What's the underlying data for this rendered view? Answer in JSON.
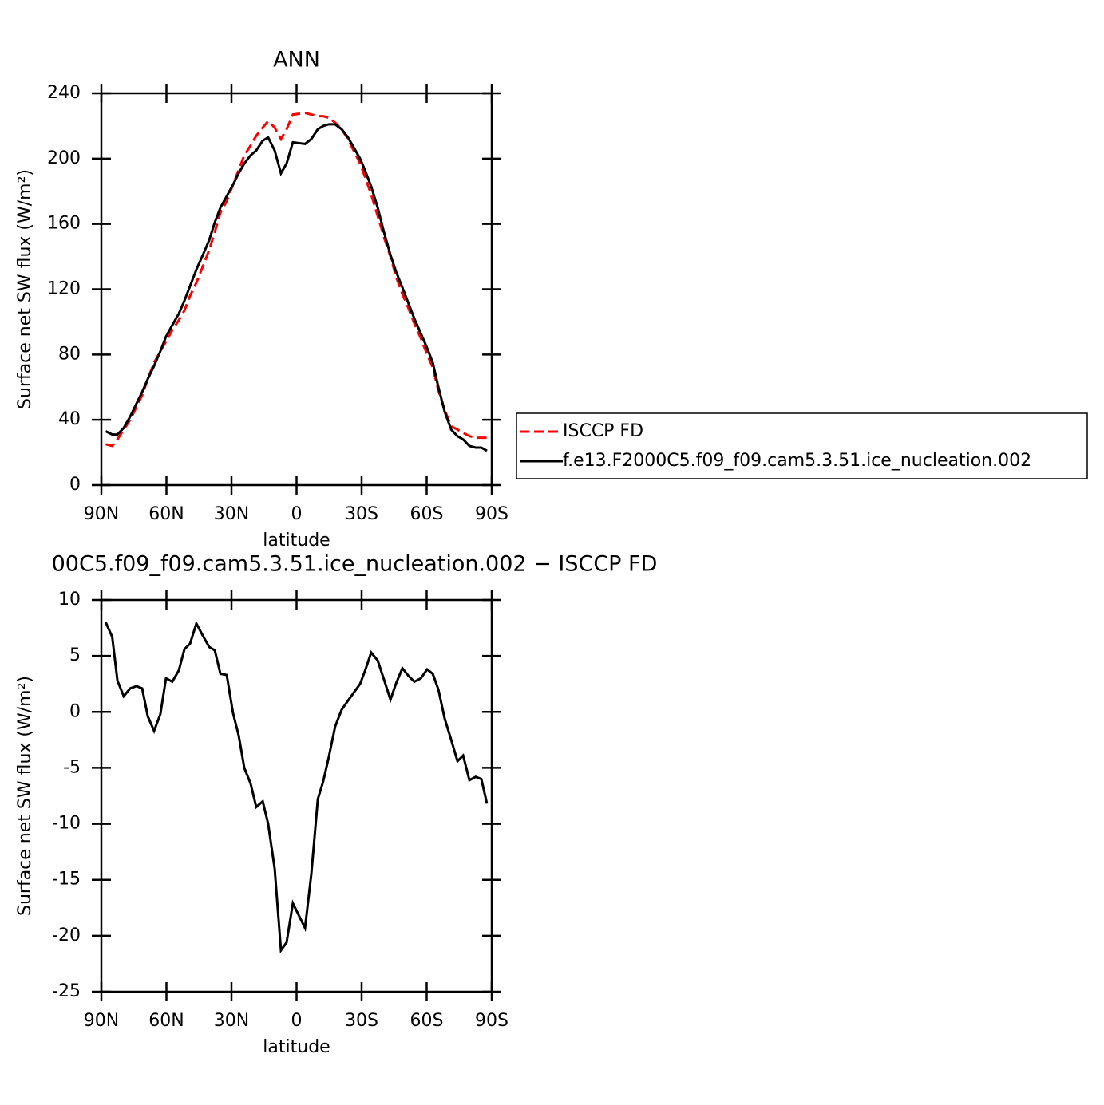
{
  "chart_data": [
    {
      "type": "line",
      "title": "ANN",
      "x_label": "latitude",
      "y_label": "Surface net SW flux (W/m²)",
      "x": [
        88,
        85,
        82.6,
        79.7,
        76.7,
        73.8,
        71.2,
        68.6,
        65.7,
        62.8,
        60.2,
        57.3,
        54.3,
        51.7,
        49.1,
        46.2,
        43.2,
        40.3,
        37.7,
        35.1,
        32.2,
        29.3,
        26.7,
        24.1,
        21.2,
        18.6,
        15.6,
        13.1,
        10.1,
        7.2,
        4.6,
        1.7,
        -3.9,
        -6.8,
        -9.8,
        -12.3,
        -14.9,
        -17.8,
        -20.8,
        -23.7,
        -26.3,
        -29.3,
        -31.8,
        -34.4,
        -37.4,
        -40.3,
        -43.3,
        -45.8,
        -48.8,
        -51.7,
        -54.3,
        -57.3,
        -60.2,
        -62.8,
        -65.4,
        -68.3,
        -71.3,
        -74.2,
        -76.8,
        -79.7,
        -82.6,
        -85.2,
        -87.8
      ],
      "series": [
        {
          "name": "ISCCP FD",
          "color": "#ff0000",
          "line_style": "dashed",
          "values": [
            25,
            24,
            28,
            34,
            40,
            48,
            55,
            65,
            75,
            82,
            88,
            95,
            101,
            107,
            116,
            124,
            134,
            144,
            155,
            167,
            174,
            184,
            193,
            202,
            208,
            214,
            219,
            223,
            219,
            212,
            218,
            227,
            228,
            227,
            226,
            226,
            225,
            222,
            218,
            212,
            205,
            197,
            188,
            178,
            165,
            152,
            140,
            128,
            117,
            108,
            99,
            90,
            80,
            72,
            58,
            46,
            36,
            34,
            32,
            30,
            29,
            29,
            29
          ]
        },
        {
          "name": "f.e13.F2000C5.f09_f09.cam5.3.51.ice_nucleation.002",
          "color": "#000000",
          "line_style": "solid",
          "values": [
            33,
            31,
            31,
            35,
            42,
            50,
            57,
            65,
            73,
            82,
            91,
            98,
            105,
            113,
            122,
            132,
            141,
            150,
            161,
            170,
            177,
            184,
            191,
            197,
            202,
            205,
            211,
            213,
            205,
            191,
            197,
            210,
            209,
            212,
            218,
            220,
            221,
            221,
            218,
            213,
            207,
            200,
            192,
            183,
            170,
            155,
            141,
            131,
            121,
            111,
            102,
            93,
            84,
            75,
            60,
            45,
            34,
            30,
            28,
            24,
            23,
            23,
            21
          ]
        }
      ],
      "xlim": [
        90,
        -90
      ],
      "xticks": [
        {
          "value": 90,
          "label": "90N"
        },
        {
          "value": 60,
          "label": "60N"
        },
        {
          "value": 30,
          "label": "30N"
        },
        0,
        {
          "value": -30,
          "label": "30S"
        },
        {
          "value": -60,
          "label": "60S"
        },
        {
          "value": -90,
          "label": "90S"
        }
      ],
      "ylim": [
        0,
        240
      ],
      "yticks": [
        0,
        40,
        80,
        120,
        160,
        200,
        240
      ],
      "legend": "right"
    },
    {
      "type": "line",
      "title": "00C5.f09_f09.cam5.3.51.ice_nucleation.002 − ISCCP FD",
      "x_label": "latitude",
      "y_label": "Surface net SW flux (W/m²)",
      "x": [
        88,
        85,
        82.6,
        79.7,
        76.7,
        73.8,
        71.2,
        68.6,
        65.7,
        62.8,
        60.2,
        57.3,
        54.3,
        51.7,
        49.1,
        46.2,
        43.2,
        40.3,
        37.7,
        35.1,
        32.2,
        29.3,
        26.7,
        24.1,
        21.2,
        18.6,
        15.6,
        13.1,
        10.1,
        7.2,
        4.6,
        1.7,
        -3.9,
        -6.8,
        -9.8,
        -12.3,
        -14.9,
        -17.8,
        -20.8,
        -23.7,
        -26.3,
        -29.3,
        -31.8,
        -34.4,
        -37.4,
        -40.3,
        -43.3,
        -45.8,
        -48.8,
        -51.7,
        -54.3,
        -57.3,
        -60.2,
        -62.8,
        -65.4,
        -68.3,
        -71.3,
        -74.2,
        -76.8,
        -79.7,
        -82.6,
        -85.2,
        -87.8
      ],
      "values": [
        8.0,
        6.7,
        2.8,
        1.4,
        2.1,
        2.3,
        2.1,
        -0.4,
        -1.7,
        -0.2,
        3.0,
        2.7,
        3.7,
        5.6,
        6.1,
        7.9,
        6.8,
        5.8,
        5.5,
        3.4,
        3.3,
        -0.1,
        -2.1,
        -5.0,
        -6.4,
        -8.5,
        -8.0,
        -10.0,
        -14.0,
        -21.3,
        -20.6,
        -17.1,
        -19.3,
        -14.5,
        -7.8,
        -6.2,
        -4.0,
        -1.3,
        0.2,
        1.0,
        1.7,
        2.5,
        3.8,
        5.3,
        4.6,
        2.9,
        1.1,
        2.5,
        3.9,
        3.2,
        2.7,
        3.0,
        3.8,
        3.4,
        2.0,
        -0.6,
        -2.5,
        -4.4,
        -3.9,
        -6.1,
        -5.8,
        -6.0,
        -8.2
      ],
      "color": "#000000",
      "xlim": [
        90,
        -90
      ],
      "xticks": [
        {
          "value": 90,
          "label": "90N"
        },
        {
          "value": 60,
          "label": "60N"
        },
        {
          "value": 30,
          "label": "30N"
        },
        0,
        {
          "value": -30,
          "label": "30S"
        },
        {
          "value": -60,
          "label": "60S"
        },
        {
          "value": -90,
          "label": "90S"
        }
      ],
      "ylim": [
        -25,
        10
      ],
      "yticks": [
        -25,
        -20,
        -15,
        -10,
        -5,
        0,
        5,
        10
      ]
    }
  ]
}
